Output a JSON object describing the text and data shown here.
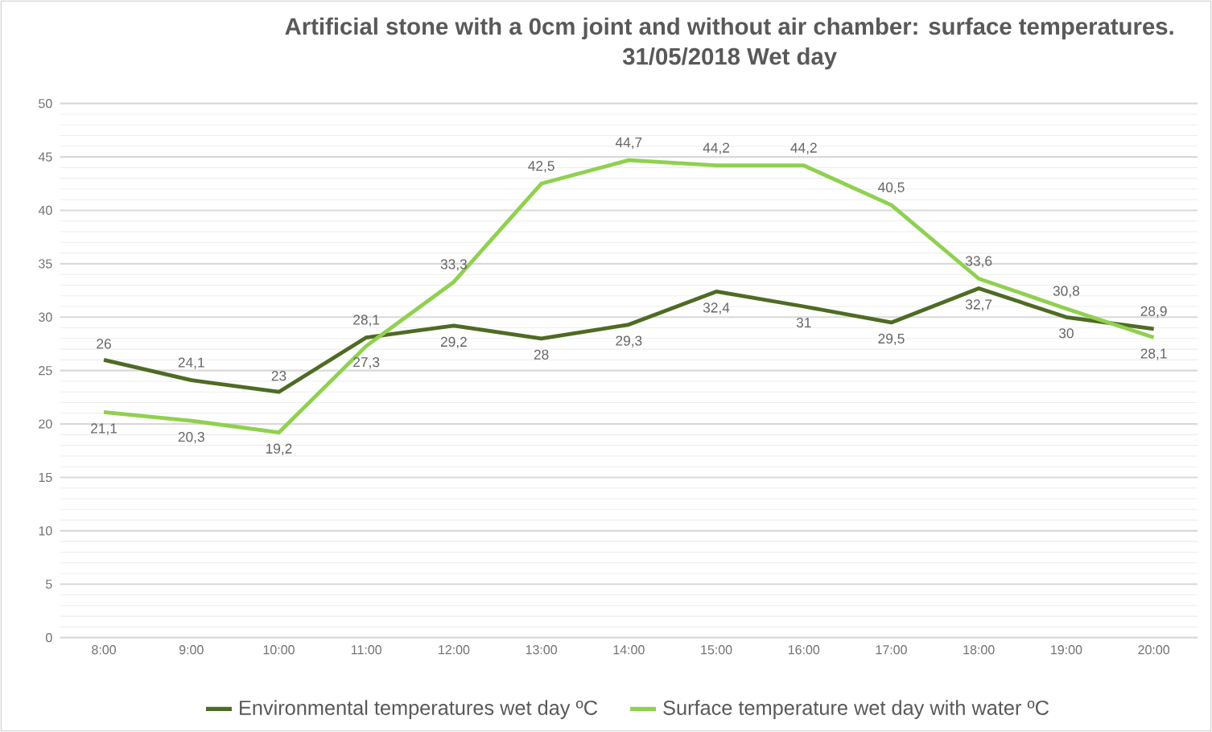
{
  "chart_data": {
    "type": "line",
    "title": "Artificial stone with a 0cm joint and without air chamber: surface temperatures.",
    "subtitle": "31/05/2018   Wet day",
    "categories": [
      "8:00",
      "9:00",
      "10:00",
      "11:00",
      "12:00",
      "13:00",
      "14:00",
      "15:00",
      "16:00",
      "17:00",
      "18:00",
      "19:00",
      "20:00"
    ],
    "series": [
      {
        "name": "Environmental temperatures wet day  ºC",
        "color": "#4e6b24",
        "values": [
          26,
          24.1,
          23,
          28.1,
          29.2,
          28,
          29.3,
          32.4,
          31,
          29.5,
          32.7,
          30,
          28.9
        ],
        "value_labels": [
          "26",
          "24,1",
          "23",
          "28,1",
          "29,2",
          "28",
          "29,3",
          "32,4",
          "31",
          "29,5",
          "32,7",
          "30",
          "28,9"
        ]
      },
      {
        "name": "Surface temperature wet day with water  ºC",
        "color": "#8fd14f",
        "values": [
          21.1,
          20.3,
          19.2,
          27.3,
          33.3,
          42.5,
          44.7,
          44.2,
          44.2,
          40.5,
          33.6,
          30.8,
          28.1
        ],
        "value_labels": [
          "21,1",
          "20,3",
          "19,2",
          "27,3",
          "33,3",
          "42,5",
          "44,7",
          "44,2",
          "44,2",
          "40,5",
          "33,6",
          "30,8",
          "28,1"
        ]
      }
    ],
    "ylim": [
      0,
      50
    ],
    "yticks": [
      0,
      5,
      10,
      15,
      20,
      25,
      30,
      35,
      40,
      45,
      50
    ],
    "grid": "y",
    "legend": "bottom",
    "marker": "none",
    "line_style": "solid"
  }
}
